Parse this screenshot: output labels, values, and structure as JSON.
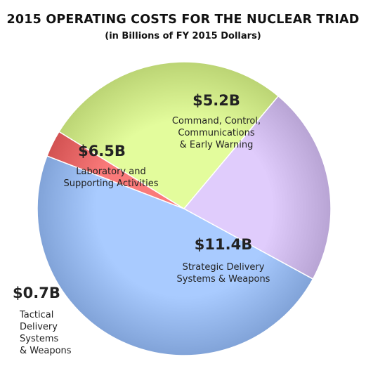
{
  "chart_data": {
    "type": "pie",
    "title": "2015 OPERATING COSTS FOR THE NUCLEAR TRIAD",
    "subtitle": "(in Billions of FY 2015 Dollars)",
    "slices": [
      {
        "value": 11.4,
        "value_label": "$11.4B",
        "label_lines": [
          "Strategic Delivery",
          "Systems & Weapons"
        ],
        "color": "#9dbff4"
      },
      {
        "value": 0.7,
        "value_label": "$0.7B",
        "label_lines": [
          "Tactical",
          "Delivery",
          "Systems",
          "& Weapons"
        ],
        "color": "#ee6e6e"
      },
      {
        "value": 6.5,
        "value_label": "$6.5B",
        "label_lines": [
          "Laboratory and",
          "Supporting Activities"
        ],
        "color": "#d7f090"
      },
      {
        "value": 5.2,
        "value_label": "$5.2B",
        "label_lines": [
          "Command, Control,",
          "Communications",
          "& Early Warning"
        ],
        "color": "#d4c0f0"
      }
    ]
  }
}
